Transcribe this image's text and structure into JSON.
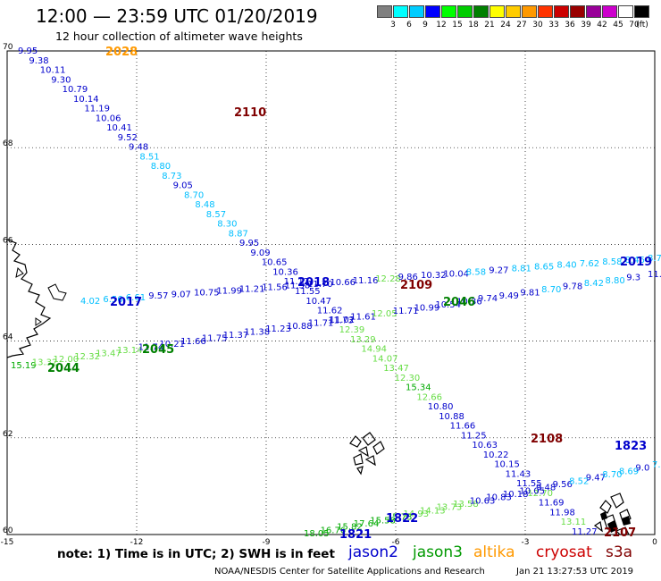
{
  "title": "12:00 — 23:59 UTC 01/20/2019",
  "subtitle": "12 hour collection of altimeter wave heights",
  "colorbar": {
    "colors": [
      "#808080",
      "#00ffff",
      "#00ccff",
      "#0000ff",
      "#00ff00",
      "#00cc00",
      "#008000",
      "#ffff00",
      "#ffcc00",
      "#ff9900",
      "#ff3300",
      "#cc0000",
      "#990000",
      "#990099",
      "#cc00cc",
      "#ffffff",
      "#000000"
    ],
    "labels": [
      "3",
      "6",
      "9",
      "12",
      "15",
      "18",
      "21",
      "24",
      "27",
      "30",
      "33",
      "36",
      "39",
      "42",
      "45",
      "70",
      "(ft)"
    ]
  },
  "map": {
    "lon_ticks": [
      "-15",
      "-12",
      "-9",
      "-6",
      "-3",
      "0"
    ],
    "lat_ticks": [
      "70",
      "68",
      "66",
      "64",
      "62",
      "60"
    ],
    "lon_range": [
      -15,
      0
    ],
    "lat_range": [
      60,
      70
    ],
    "grid": "dotted"
  },
  "passes": [
    {
      "name": "2028",
      "color": "#ff9900"
    },
    {
      "name": "2110",
      "color": "#800000"
    },
    {
      "name": "2018",
      "color": "#0000cc"
    },
    {
      "name": "2019",
      "color": "#0000cc"
    },
    {
      "name": "2109",
      "color": "#800000"
    },
    {
      "name": "2017",
      "color": "#0000cc"
    },
    {
      "name": "2046",
      "color": "#008000"
    },
    {
      "name": "2045",
      "color": "#008000"
    },
    {
      "name": "2044",
      "color": "#008000"
    },
    {
      "name": "2108",
      "color": "#800000"
    },
    {
      "name": "1823",
      "color": "#0000cc"
    },
    {
      "name": "1822",
      "color": "#0000cc"
    },
    {
      "name": "1821",
      "color": "#0000cc"
    },
    {
      "name": "2107",
      "color": "#800000"
    }
  ],
  "values": {
    "track_2110": [
      "9.95",
      "9.38",
      "10.11",
      "9.30",
      "10.79",
      "10.14",
      "11.19",
      "10.06",
      "10.41",
      "9.52",
      "9.48",
      "8.51",
      "8.80",
      "8.73",
      "9.05",
      "8.70",
      "8.48",
      "8.57",
      "8.30",
      "8.87",
      "9.95",
      "9.09",
      "10.65",
      "10.36",
      "11.12",
      "11.55",
      "10.47",
      "11.62",
      "11.73",
      "12.39",
      "13.29",
      "14.94",
      "14.07",
      "13.47",
      "12.30",
      "15.34",
      "12.66",
      "10.80",
      "10.88",
      "11.66",
      "11.25",
      "10.63",
      "10.22",
      "10.15",
      "11.43",
      "11.55",
      "12.70",
      "11.69",
      "11.98",
      "13.11",
      "11.27"
    ],
    "track_2018": [
      "4.02",
      "6.56",
      "6.61",
      "9.57",
      "9.07",
      "10.75",
      "11.99",
      "11.21",
      "11.56",
      "11.38",
      "11.70",
      "10.66",
      "11.16",
      "12.28",
      "9.86",
      "10.32",
      "10.04",
      "8.58",
      "9.27",
      "8.81",
      "8.65",
      "8.40",
      "7.62",
      "8.58",
      "8.46",
      "8.79"
    ],
    "track_2046": [
      "15.19",
      "13.32",
      "12.00",
      "12.32",
      "13.47",
      "13.14",
      "11.74",
      "10.21",
      "11.66",
      "11.75",
      "11.37",
      "11.38",
      "11.23",
      "10.88",
      "11.71",
      "11.02",
      "11.61",
      "12.05",
      "11.71",
      "10.99",
      "10.54",
      "10.36",
      "9.74",
      "9.49",
      "9.81",
      "8.70",
      "9.78",
      "8.42",
      "8.80",
      "9.3",
      "11.91"
    ],
    "track_1823": [
      "18.05",
      "16.76",
      "15.82",
      "17.64",
      "15.58",
      "15.73",
      "14.93",
      "14.13",
      "13.73",
      "13.58",
      "10.63",
      "10.83",
      "10.18",
      "10.05",
      "9.48",
      "9.56",
      "8.52",
      "9.47",
      "8.70",
      "8.69",
      "9.0",
      "7.4"
    ]
  },
  "note": "note:  1) Time is in UTC;  2) SWH is in feet",
  "satellites": [
    {
      "name": "jason2",
      "color": "#0000cc"
    },
    {
      "name": "jason3",
      "color": "#009900"
    },
    {
      "name": "altika",
      "color": "#ff9900"
    },
    {
      "name": "cryosat",
      "color": "#cc0000"
    },
    {
      "name": "s3a",
      "color": "#800000"
    }
  ],
  "credit": "NOAA/NESDIS Center for Satellite Applications and Research",
  "timestamp": "Jan 21 13:27:53 UTC 2019"
}
